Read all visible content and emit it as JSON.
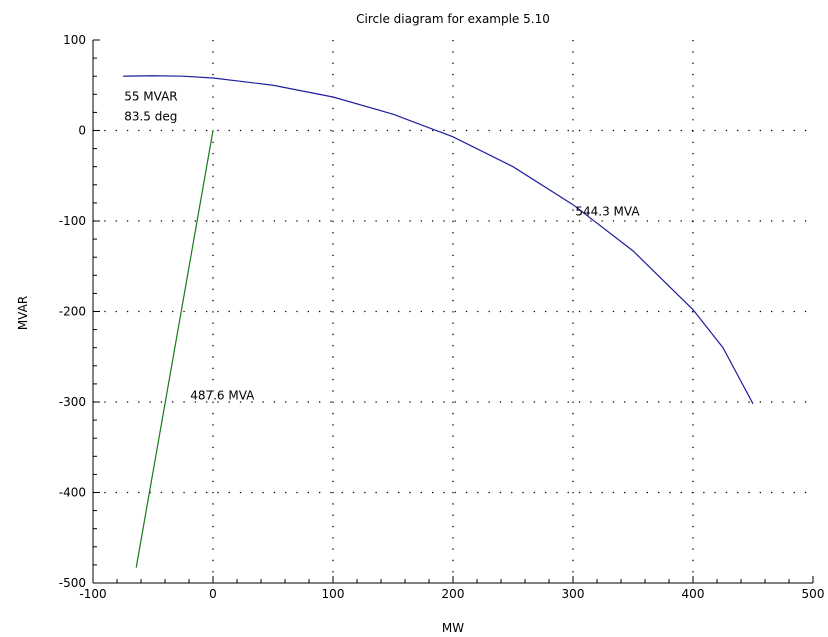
{
  "chart_data": {
    "type": "line",
    "title": "Circle diagram for example 5.10",
    "xlabel": "MW",
    "ylabel": "MVAR",
    "xlim": [
      -100,
      500
    ],
    "ylim": [
      -500,
      100
    ],
    "xticks": [
      -100,
      0,
      100,
      200,
      300,
      400,
      500
    ],
    "yticks": [
      100,
      0,
      -100,
      -200,
      -300,
      -400,
      -500
    ],
    "grid": true,
    "series": [
      {
        "color": "#1f1f9e",
        "x": [
          -75,
          -50,
          -25,
          0,
          50,
          100,
          150,
          200,
          250,
          300,
          350,
          400,
          425,
          450
        ],
        "y": [
          60,
          60.5,
          60,
          58,
          50,
          37,
          18,
          -7,
          -40,
          -82,
          -133,
          -198,
          -240,
          -302
        ]
      },
      {
        "color": "#1a7a1a",
        "x": [
          0,
          -64
        ],
        "y": [
          0,
          -483
        ]
      }
    ],
    "annotations": [
      {
        "text": "55 MVAR",
        "x": -74,
        "y": 33
      },
      {
        "text": "83.5 deg",
        "x": -74,
        "y": 11
      },
      {
        "text": "544.3 MVA",
        "x": 302,
        "y": -94
      },
      {
        "text": "487.6 MVA",
        "x": -19,
        "y": -297
      }
    ]
  }
}
